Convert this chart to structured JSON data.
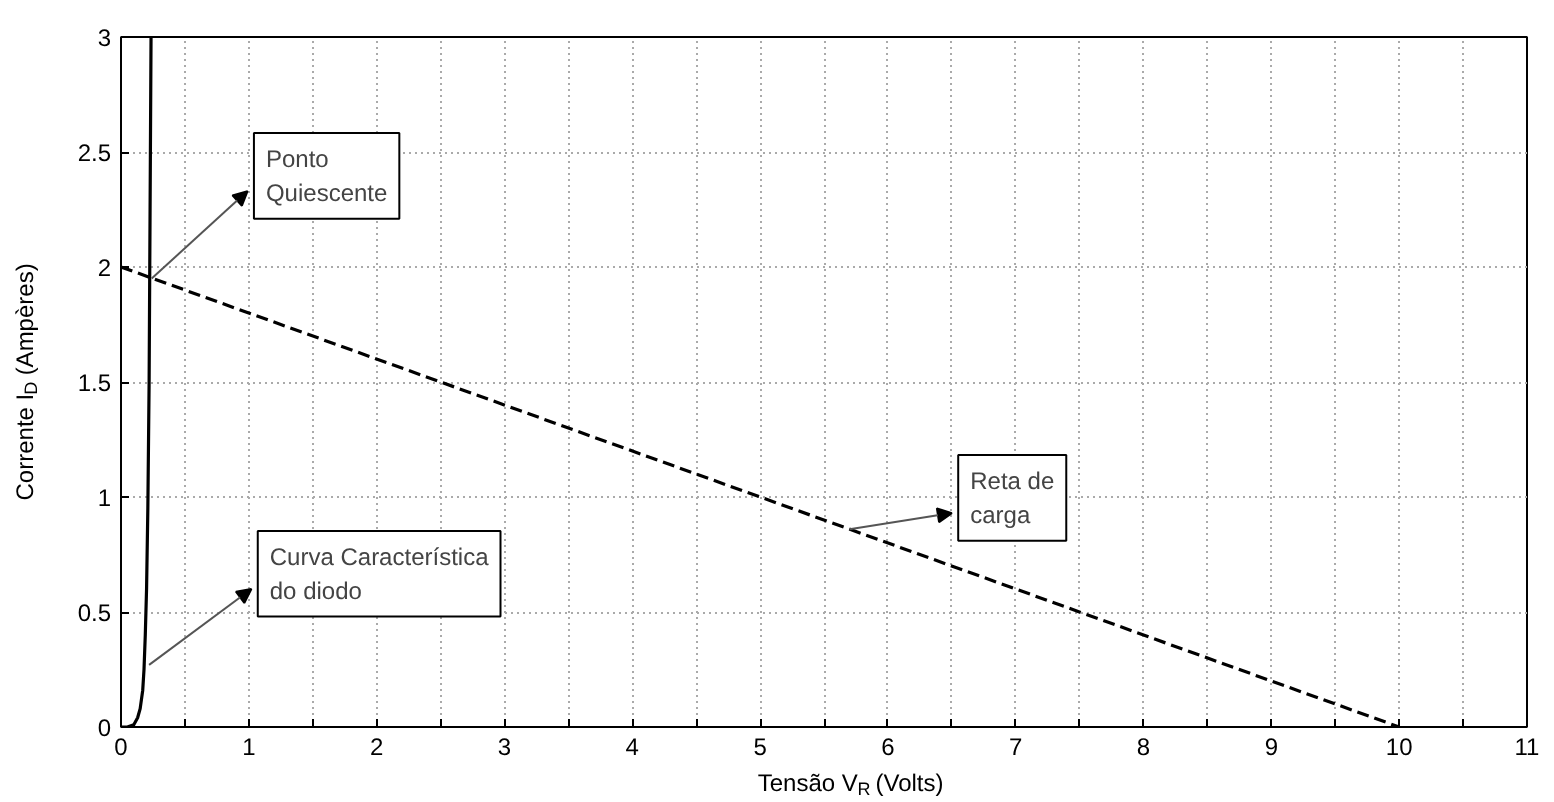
{
  "chart_data": {
    "type": "line",
    "xlabel": "Tensão V$_{R}$ (Volts)",
    "ylabel": "Corrente I$_{D}$ (Ampères)",
    "series": [
      {
        "color": "#000000",
        "line_style": "solid",
        "x": [
          0,
          0.05,
          0.1,
          0.13,
          0.15,
          0.17,
          0.18,
          0.19,
          0.2,
          0.21,
          0.22,
          0.225,
          0.23,
          0.235
        ],
        "values": [
          0,
          0,
          0.01,
          0.04,
          0.08,
          0.16,
          0.25,
          0.4,
          0.6,
          0.95,
          1.5,
          2.0,
          2.5,
          3.0
        ]
      },
      {
        "color": "#000000",
        "line_style": "dashed",
        "x": [
          0,
          10
        ],
        "values": [
          2,
          0
        ]
      }
    ],
    "xlim": [
      0,
      11
    ],
    "ylim": [
      0,
      3
    ],
    "xticks": [
      0,
      {
        "value": 0.5,
        "label": null
      },
      1,
      {
        "value": 1.5,
        "label": null
      },
      2,
      {
        "value": 2.5,
        "label": null
      },
      3,
      {
        "value": 3.5,
        "label": null
      },
      4,
      {
        "value": 4.5,
        "label": null
      },
      5,
      {
        "value": 5.5,
        "label": null
      },
      6,
      {
        "value": 6.5,
        "label": null
      },
      7,
      {
        "value": 7.5,
        "label": null
      },
      8,
      {
        "value": 8.5,
        "label": null
      },
      9,
      {
        "value": 9.5,
        "label": null
      },
      10,
      {
        "value": 10.5,
        "label": null
      },
      {
        "value": 11,
        "label": "11"
      }
    ],
    "yticks": [
      0,
      0.5,
      1,
      1.5,
      2,
      2.5,
      3
    ],
    "grid": true,
    "annotations": [
      {
        "text": "Ponto\nQuiescente",
        "x": 0.24,
        "y": 1.95
      },
      {
        "text": "Curva Característica\ndo diodo",
        "x": 0.22,
        "y": 0.27
      },
      {
        "text": "Reta de\ncarga",
        "x": 5.7,
        "y": 0.86
      }
    ]
  }
}
